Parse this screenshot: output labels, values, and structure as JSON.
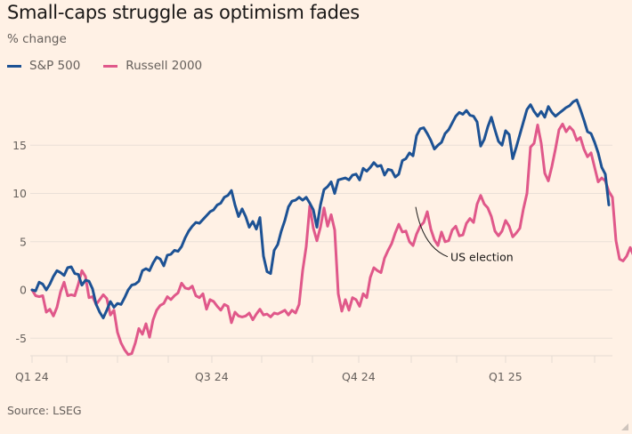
{
  "chart_data": {
    "type": "line",
    "title": "Small-caps struggle as optimism fades",
    "subtitle": "% change",
    "xlabel": "",
    "ylabel": "% change",
    "ylim": [
      -6.8,
      19.5
    ],
    "yticks": [
      15,
      10,
      5,
      0,
      -5
    ],
    "ytick_labels": [
      "15",
      "10",
      "5",
      "0",
      "-5"
    ],
    "xticks": [
      {
        "pos": 0,
        "label": "Q1 24"
      },
      {
        "pos": 9.75,
        "label": ""
      },
      {
        "pos": 24,
        "label": ""
      },
      {
        "pos": 38.25,
        "label": ""
      },
      {
        "pos": 50.5,
        "label": "Q3 24"
      },
      {
        "pos": 64.5,
        "label": ""
      },
      {
        "pos": 78.75,
        "label": ""
      },
      {
        "pos": 91.75,
        "label": "Q4 24"
      },
      {
        "pos": 106.5,
        "label": ""
      },
      {
        "pos": 119.25,
        "label": ""
      },
      {
        "pos": 133,
        "label": "Q1 25"
      },
      {
        "pos": 146,
        "label": ""
      },
      {
        "pos": 158,
        "label": ""
      }
    ],
    "xlim": [
      0,
      163
    ],
    "grid": true,
    "legend_position": "top-left",
    "series": [
      {
        "name": "S&P 500",
        "color": "#1d5294",
        "values": [
          0,
          -0.1,
          0.8,
          0.6,
          0,
          0.6,
          1.4,
          2.0,
          1.8,
          1.5,
          2.3,
          2.4,
          1.7,
          1.6,
          0.5,
          1.0,
          0.9,
          0.1,
          -1.5,
          -2.3,
          -2.9,
          -2.1,
          -1.2,
          -1.8,
          -1.4,
          -1.5,
          -0.8,
          0,
          0.5,
          0.6,
          0.9,
          2.0,
          2.2,
          2.0,
          2.8,
          3.4,
          3.2,
          2.5,
          3.6,
          3.7,
          4.1,
          4.0,
          4.5,
          5.4,
          6.1,
          6.6,
          7.0,
          6.9,
          7.3,
          7.7,
          8.1,
          8.3,
          8.8,
          9.0,
          9.6,
          9.8,
          10.3,
          8.8,
          7.6,
          8.4,
          7.6,
          6.5,
          7.1,
          6.3,
          7.5,
          3.5,
          1.9,
          1.7,
          4.1,
          4.7,
          6.1,
          7.2,
          8.6,
          9.2,
          9.3,
          9.6,
          9.3,
          9.6,
          9.0,
          8.3,
          6.5,
          8.8,
          10.4,
          10.7,
          11.2,
          10.0,
          11.4,
          11.5,
          11.6,
          11.4,
          11.9,
          12.0,
          11.4,
          12.6,
          12.3,
          12.7,
          13.2,
          12.8,
          12.9,
          11.9,
          12.5,
          12.4,
          11.7,
          12.0,
          13.4,
          13.6,
          14.2,
          13.9,
          16.0,
          16.7,
          16.8,
          16.2,
          15.5,
          14.6,
          15.0,
          15.3,
          16.2,
          16.6,
          17.3,
          18.0,
          18.4,
          18.2,
          18.6,
          18.1,
          18.0,
          17.4,
          14.9,
          15.6,
          16.9,
          17.9,
          16.6,
          15.4,
          15.0,
          16.5,
          16.1,
          13.6,
          14.8,
          16.1,
          17.4,
          18.7,
          19.2,
          18.5,
          18.0,
          18.5,
          17.9,
          19.0,
          18.4,
          18.0,
          18.3,
          18.6,
          18.9,
          19.1,
          19.5,
          19.7,
          18.7,
          17.6,
          16.4,
          16.2,
          15.3,
          14.2,
          12.7,
          12.0,
          8.8
        ]
      },
      {
        "name": "Russell 2000",
        "color": "#e0588a",
        "values": [
          0,
          -0.6,
          -0.7,
          -0.6,
          -2.3,
          -2.0,
          -2.7,
          -1.8,
          -0.2,
          0.8,
          -0.6,
          -0.5,
          -0.6,
          0.6,
          2.0,
          1.4,
          -0.8,
          -0.7,
          -1.5,
          -1.0,
          -0.5,
          -0.9,
          -2.6,
          -2.1,
          -4.4,
          -5.5,
          -6.2,
          -6.7,
          -6.6,
          -5.5,
          -4.0,
          -4.6,
          -3.5,
          -4.9,
          -3.1,
          -2.1,
          -1.6,
          -1.4,
          -0.7,
          -1.0,
          -0.6,
          -0.3,
          0.7,
          0.2,
          0.1,
          0.4,
          -0.6,
          -0.8,
          -0.4,
          -2.0,
          -1.0,
          -1.2,
          -1.7,
          -2.1,
          -1.5,
          -1.7,
          -3.4,
          -2.3,
          -2.7,
          -2.8,
          -2.7,
          -2.4,
          -3.1,
          -2.5,
          -2.0,
          -2.6,
          -2.5,
          -2.8,
          -2.4,
          -2.5,
          -2.3,
          -2.1,
          -2.6,
          -2.1,
          -2.4,
          -1.5,
          2.0,
          4.5,
          8.7,
          6.4,
          5.1,
          6.5,
          8.5,
          6.6,
          7.8,
          6.2,
          -0.4,
          -2.2,
          -1.0,
          -2.1,
          -0.8,
          -1.0,
          -1.7,
          -0.4,
          -0.8,
          1.3,
          2.3,
          2.0,
          1.8,
          3.3,
          4.1,
          4.8,
          5.9,
          6.8,
          6.0,
          6.1,
          5.0,
          4.6,
          5.8,
          6.6,
          7.0,
          8.1,
          6.3,
          5.2,
          4.6,
          6.0,
          5.0,
          5.1,
          6.2,
          6.6,
          5.6,
          5.7,
          6.9,
          7.4,
          7.0,
          8.9,
          9.8,
          8.9,
          8.5,
          7.6,
          6.1,
          5.6,
          6.1,
          7.2,
          6.6,
          5.5,
          5.9,
          6.4,
          8.4,
          10.0,
          14.8,
          15.2,
          17.1,
          15.2,
          12.1,
          11.3,
          12.8,
          14.6,
          16.6,
          17.2,
          16.4,
          16.9,
          16.5,
          15.5,
          15.8,
          14.6,
          13.8,
          14.2,
          12.7,
          11.2,
          11.6,
          11.3,
          10.2,
          9.6,
          5.1,
          3.2,
          3.0,
          3.5,
          4.4,
          3.5,
          2.9
        ]
      }
    ],
    "annotations": [
      {
        "text": "US election",
        "series": "Russell 2000"
      }
    ]
  },
  "header": {
    "title": "Small-caps struggle as optimism fades",
    "subtitle": "% change"
  },
  "legend": [
    {
      "label": "S&P 500",
      "color": "#1d5294"
    },
    {
      "label": "Russell 2000",
      "color": "#e0588a"
    }
  ],
  "footer": {
    "source": "Source: LSEG"
  }
}
